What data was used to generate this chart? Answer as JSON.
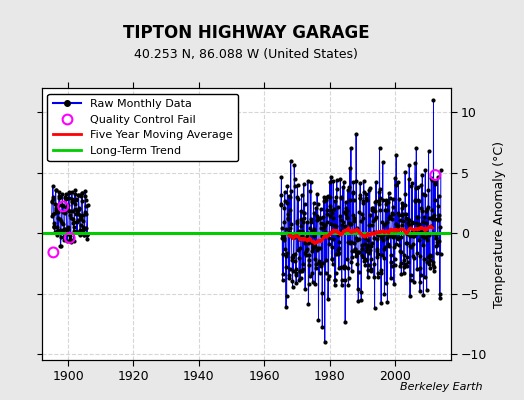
{
  "title": "TIPTON HIGHWAY GARAGE",
  "subtitle": "40.253 N, 86.088 W (United States)",
  "ylabel": "Temperature Anomaly (°C)",
  "credit": "Berkeley Earth",
  "xlim": [
    1892,
    2017
  ],
  "ylim": [
    -10.5,
    12
  ],
  "yticks": [
    -10,
    -5,
    0,
    5,
    10
  ],
  "xticks": [
    1900,
    1920,
    1940,
    1960,
    1980,
    2000
  ],
  "fig_bg_color": "#e8e8e8",
  "plot_bg_color": "#ffffff",
  "grid_color": "#cccccc",
  "early_period_start": 1895,
  "early_period_end": 1906,
  "early_mean": 1.5,
  "early_amplitude": 1.6,
  "main_period_start": 1965,
  "main_period_end": 2014,
  "long_term_trend_y": 0.0,
  "qc_early_years": [
    1895.5,
    1898.5,
    1900.5
  ],
  "qc_early_vals": [
    -1.6,
    2.2,
    -0.4
  ],
  "qc_main_years": [
    2012.3
  ],
  "qc_main_vals": [
    4.8
  ],
  "colors": {
    "raw_data_line": "#0000ee",
    "raw_data_dot": "#000000",
    "qc_fail": "#ff00ff",
    "moving_avg": "#ff0000",
    "long_term": "#00cc00",
    "legend_bg": "#ffffff"
  },
  "title_fontsize": 12,
  "subtitle_fontsize": 9,
  "tick_fontsize": 9,
  "ylabel_fontsize": 9,
  "legend_fontsize": 8,
  "credit_fontsize": 8
}
